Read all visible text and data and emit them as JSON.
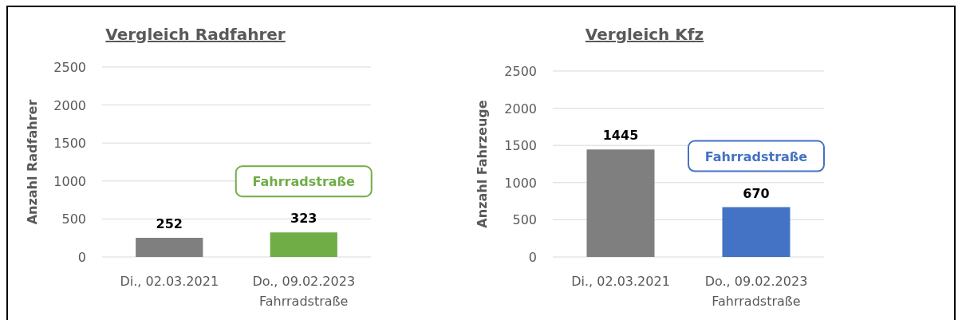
{
  "chart_data": [
    {
      "type": "bar",
      "title": "Vergleich Radfahrer",
      "ylabel": "Anzahl Radfahrer",
      "categories": [
        "Di., 02.03.2021",
        "Do., 09.02.2023\nFahrradstraße"
      ],
      "values": [
        252,
        323
      ],
      "colors": [
        "#7f7f7f",
        "#70ad47"
      ],
      "ylim": [
        0,
        2500
      ],
      "yticks": [
        0,
        500,
        1000,
        1500,
        2000,
        2500
      ],
      "grid": "y",
      "data_labels": true,
      "annotations": [
        "Fahrradstraße"
      ]
    },
    {
      "type": "bar",
      "title": "Vergleich Kfz",
      "ylabel": "Anzahl Fahrzeuge",
      "categories": [
        "Di., 02.03.2021",
        "Do., 09.02.2023\nFahrradstraße"
      ],
      "values": [
        1445,
        670
      ],
      "colors": [
        "#7f7f7f",
        "#4472c4"
      ],
      "ylim": [
        0,
        2500
      ],
      "yticks": [
        0,
        500,
        1000,
        1500,
        2000,
        2500
      ],
      "grid": "y",
      "data_labels": true,
      "annotations": [
        "Fahrradstraße"
      ]
    }
  ]
}
